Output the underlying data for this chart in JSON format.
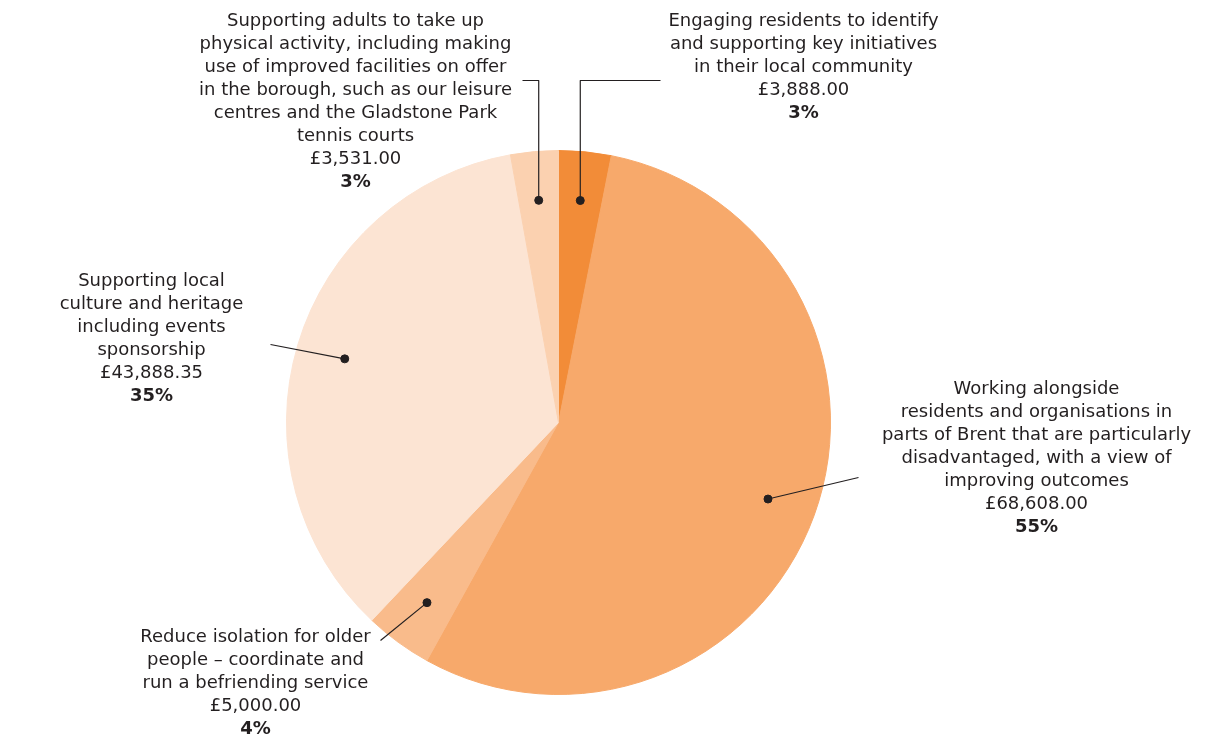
{
  "chart_data": {
    "type": "pie",
    "categories": [
      "Engaging residents to identify\nand supporting key initiatives\nin their local community",
      "Working alongside\nresidents and organisations in\nparts of Brent that are particularly\ndisadvantaged, with a view of\nimproving outcomes",
      "Reduce isolation for older\npeople – coordinate and\nrun a befriending service",
      "Supporting local\nculture and heritage\nincluding events\nsponsorship",
      "Supporting adults to take up\nphysical activity, including making\nuse of improved facilities on offer\nin the borough, such as our leisure\ncentres and the Gladstone Park\ntennis courts"
    ],
    "values": [
      3888.0,
      68608.0,
      5000.0,
      43888.35,
      3531.0
    ],
    "colors": [
      "#f28c38",
      "#f7a96b",
      "#f9bb8b",
      "#fce4d3",
      "#fbd1b0"
    ],
    "value_labels": [
      "£3,888.00\n3%",
      "£68,608.00\n55%",
      "£5,000.00\n4%",
      "£43,888.35\n35%",
      "£3,531.00\n3%"
    ]
  }
}
